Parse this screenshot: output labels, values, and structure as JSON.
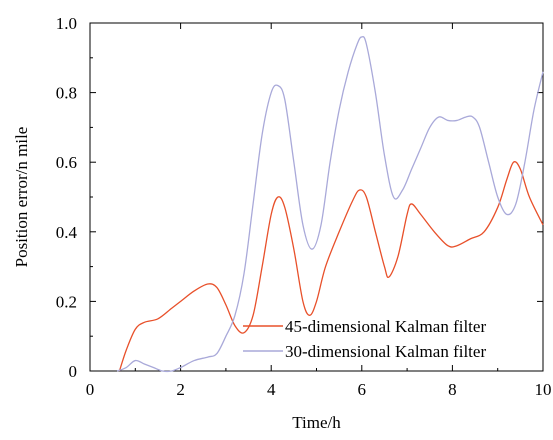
{
  "chart_data": {
    "type": "line",
    "xlabel": "Time/h",
    "ylabel": "Position error/n mile",
    "xlim": [
      0,
      10
    ],
    "ylim": [
      0,
      1.0
    ],
    "x_ticks": [
      0,
      2,
      4,
      6,
      8,
      10
    ],
    "x_tick_labels": [
      "0",
      "2",
      "4",
      "6",
      "8",
      "10"
    ],
    "y_ticks": [
      0,
      0.2,
      0.4,
      0.6,
      0.8,
      1.0
    ],
    "y_tick_labels": [
      "0",
      "0.2",
      "0.4",
      "0.6",
      "0.8",
      "1.0"
    ],
    "grid": false,
    "legend_position": "bottom-right",
    "series": [
      {
        "name": "45-dimensional Kalman filter",
        "color": "#e8502a",
        "x": [
          0.65,
          0.8,
          1.0,
          1.2,
          1.5,
          1.8,
          2.0,
          2.3,
          2.6,
          2.8,
          3.0,
          3.2,
          3.4,
          3.6,
          3.8,
          4.0,
          4.15,
          4.3,
          4.5,
          4.7,
          4.85,
          5.0,
          5.2,
          5.5,
          5.8,
          5.95,
          6.1,
          6.3,
          6.5,
          6.6,
          6.8,
          7.0,
          7.1,
          7.3,
          7.6,
          7.9,
          8.1,
          8.4,
          8.7,
          9.0,
          9.2,
          9.35,
          9.5,
          9.7,
          10.0
        ],
        "y": [
          0.0,
          0.06,
          0.12,
          0.14,
          0.15,
          0.18,
          0.2,
          0.23,
          0.25,
          0.24,
          0.19,
          0.13,
          0.11,
          0.16,
          0.3,
          0.45,
          0.5,
          0.47,
          0.35,
          0.2,
          0.16,
          0.2,
          0.3,
          0.4,
          0.49,
          0.52,
          0.5,
          0.4,
          0.3,
          0.27,
          0.33,
          0.45,
          0.48,
          0.45,
          0.4,
          0.36,
          0.36,
          0.38,
          0.4,
          0.47,
          0.55,
          0.6,
          0.58,
          0.5,
          0.42
        ]
      },
      {
        "name": "30-dimensional Kalman filter",
        "color": "#a9a9d9",
        "x": [
          0.6,
          0.8,
          1.0,
          1.2,
          1.4,
          1.6,
          1.8,
          2.0,
          2.3,
          2.6,
          2.8,
          3.0,
          3.2,
          3.4,
          3.6,
          3.8,
          4.0,
          4.15,
          4.3,
          4.5,
          4.7,
          4.9,
          5.1,
          5.3,
          5.5,
          5.7,
          5.9,
          6.0,
          6.1,
          6.3,
          6.5,
          6.7,
          6.9,
          7.1,
          7.3,
          7.5,
          7.7,
          7.9,
          8.1,
          8.3,
          8.45,
          8.6,
          8.8,
          9.0,
          9.2,
          9.4,
          9.6,
          9.8,
          10.0
        ],
        "y": [
          0.0,
          0.01,
          0.03,
          0.02,
          0.01,
          0.0,
          0.0,
          0.01,
          0.03,
          0.04,
          0.05,
          0.1,
          0.16,
          0.28,
          0.48,
          0.68,
          0.8,
          0.82,
          0.78,
          0.6,
          0.42,
          0.35,
          0.42,
          0.6,
          0.75,
          0.86,
          0.94,
          0.96,
          0.94,
          0.8,
          0.62,
          0.5,
          0.52,
          0.58,
          0.64,
          0.7,
          0.73,
          0.72,
          0.72,
          0.73,
          0.73,
          0.7,
          0.6,
          0.5,
          0.45,
          0.48,
          0.6,
          0.75,
          0.86
        ]
      }
    ]
  }
}
